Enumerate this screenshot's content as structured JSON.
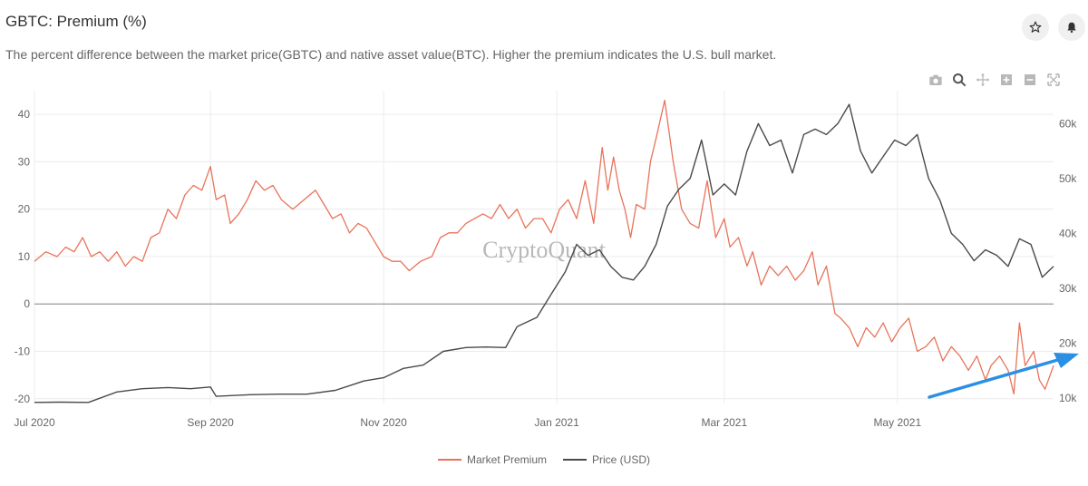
{
  "header": {
    "title": "GBTC: Premium (%)",
    "subtitle": "The percent difference between the market price(GBTC) and native asset value(BTC). Higher the premium indicates the U.S. bull market."
  },
  "icons": {
    "star": "star-icon",
    "bell": "bell-icon",
    "modebar": [
      "camera-icon",
      "zoom-icon",
      "pan-icon",
      "zoom-in-icon",
      "zoom-out-icon",
      "autoscale-icon"
    ]
  },
  "watermark": "CryptoQuant",
  "colors": {
    "premium": "#e8735a",
    "price": "#4a4a4a",
    "arrow": "#2b8fe3",
    "grid": "#ececec",
    "zero_line": "#9a9a9a"
  },
  "chart_data": {
    "type": "line",
    "x_ticks": [
      "Jul 2020",
      "Sep 2020",
      "Nov 2020",
      "Jan 2021",
      "Mar 2021",
      "May 2021"
    ],
    "x_tick_dates": [
      "2020-07-01",
      "2020-09-01",
      "2020-11-01",
      "2021-01-01",
      "2021-03-01",
      "2021-05-01"
    ],
    "x_range": [
      "2020-07-01",
      "2021-06-25"
    ],
    "y_left": {
      "ticks": [
        40,
        30,
        20,
        10,
        0,
        -10,
        -20
      ],
      "range": [
        -21,
        45
      ]
    },
    "y_right": {
      "ticks": [
        "60k",
        "50k",
        "40k",
        "30k",
        "20k",
        "10k"
      ],
      "tick_values": [
        60000,
        50000,
        40000,
        30000,
        20000,
        10000
      ],
      "range": [
        9000,
        66000
      ]
    },
    "legend": {
      "position": "bottom-center"
    },
    "grid": true,
    "series": [
      {
        "name": "Market Premium",
        "axis": "left",
        "color": "#e8735a",
        "points": [
          [
            "2020-07-01",
            9
          ],
          [
            "2020-07-05",
            11
          ],
          [
            "2020-07-09",
            10
          ],
          [
            "2020-07-12",
            12
          ],
          [
            "2020-07-15",
            11
          ],
          [
            "2020-07-18",
            14
          ],
          [
            "2020-07-21",
            10
          ],
          [
            "2020-07-24",
            11
          ],
          [
            "2020-07-27",
            9
          ],
          [
            "2020-07-30",
            11
          ],
          [
            "2020-08-02",
            8
          ],
          [
            "2020-08-05",
            10
          ],
          [
            "2020-08-08",
            9
          ],
          [
            "2020-08-11",
            14
          ],
          [
            "2020-08-14",
            15
          ],
          [
            "2020-08-17",
            20
          ],
          [
            "2020-08-20",
            18
          ],
          [
            "2020-08-23",
            23
          ],
          [
            "2020-08-26",
            25
          ],
          [
            "2020-08-29",
            24
          ],
          [
            "2020-09-01",
            29
          ],
          [
            "2020-09-03",
            22
          ],
          [
            "2020-09-06",
            23
          ],
          [
            "2020-09-08",
            17
          ],
          [
            "2020-09-11",
            19
          ],
          [
            "2020-09-14",
            22
          ],
          [
            "2020-09-17",
            26
          ],
          [
            "2020-09-20",
            24
          ],
          [
            "2020-09-23",
            25
          ],
          [
            "2020-09-26",
            22
          ],
          [
            "2020-09-30",
            20
          ],
          [
            "2020-10-04",
            22
          ],
          [
            "2020-10-08",
            24
          ],
          [
            "2020-10-11",
            21
          ],
          [
            "2020-10-14",
            18
          ],
          [
            "2020-10-17",
            19
          ],
          [
            "2020-10-20",
            15
          ],
          [
            "2020-10-23",
            17
          ],
          [
            "2020-10-26",
            16
          ],
          [
            "2020-10-29",
            13
          ],
          [
            "2020-11-01",
            10
          ],
          [
            "2020-11-04",
            9
          ],
          [
            "2020-11-07",
            9
          ],
          [
            "2020-11-10",
            7
          ],
          [
            "2020-11-14",
            9
          ],
          [
            "2020-11-18",
            10
          ],
          [
            "2020-11-21",
            14
          ],
          [
            "2020-11-24",
            15
          ],
          [
            "2020-11-27",
            15
          ],
          [
            "2020-11-30",
            17
          ],
          [
            "2020-12-03",
            18
          ],
          [
            "2020-12-06",
            19
          ],
          [
            "2020-12-09",
            18
          ],
          [
            "2020-12-12",
            21
          ],
          [
            "2020-12-15",
            18
          ],
          [
            "2020-12-18",
            20
          ],
          [
            "2020-12-21",
            16
          ],
          [
            "2020-12-24",
            18
          ],
          [
            "2020-12-27",
            18
          ],
          [
            "2020-12-30",
            15
          ],
          [
            "2021-01-02",
            20
          ],
          [
            "2021-01-05",
            22
          ],
          [
            "2021-01-08",
            18
          ],
          [
            "2021-01-11",
            26
          ],
          [
            "2021-01-14",
            17
          ],
          [
            "2021-01-17",
            33
          ],
          [
            "2021-01-19",
            24
          ],
          [
            "2021-01-21",
            31
          ],
          [
            "2021-01-23",
            24
          ],
          [
            "2021-01-25",
            20
          ],
          [
            "2021-01-27",
            14
          ],
          [
            "2021-01-29",
            21
          ],
          [
            "2021-02-01",
            20
          ],
          [
            "2021-02-03",
            30
          ],
          [
            "2021-02-05",
            35
          ],
          [
            "2021-02-08",
            43
          ],
          [
            "2021-02-11",
            30
          ],
          [
            "2021-02-14",
            20
          ],
          [
            "2021-02-17",
            17
          ],
          [
            "2021-02-20",
            16
          ],
          [
            "2021-02-23",
            26
          ],
          [
            "2021-02-26",
            14
          ],
          [
            "2021-03-01",
            18
          ],
          [
            "2021-03-03",
            12
          ],
          [
            "2021-03-06",
            14
          ],
          [
            "2021-03-09",
            8
          ],
          [
            "2021-03-11",
            11
          ],
          [
            "2021-03-14",
            4
          ],
          [
            "2021-03-17",
            8
          ],
          [
            "2021-03-20",
            6
          ],
          [
            "2021-03-23",
            8
          ],
          [
            "2021-03-26",
            5
          ],
          [
            "2021-03-29",
            7
          ],
          [
            "2021-04-01",
            11
          ],
          [
            "2021-04-03",
            4
          ],
          [
            "2021-04-06",
            8
          ],
          [
            "2021-04-09",
            -2
          ],
          [
            "2021-04-11",
            -3
          ],
          [
            "2021-04-14",
            -5
          ],
          [
            "2021-04-17",
            -9
          ],
          [
            "2021-04-20",
            -5
          ],
          [
            "2021-04-23",
            -7
          ],
          [
            "2021-04-26",
            -4
          ],
          [
            "2021-04-29",
            -8
          ],
          [
            "2021-05-02",
            -5
          ],
          [
            "2021-05-05",
            -3
          ],
          [
            "2021-05-08",
            -10
          ],
          [
            "2021-05-11",
            -9
          ],
          [
            "2021-05-14",
            -7
          ],
          [
            "2021-05-17",
            -12
          ],
          [
            "2021-05-20",
            -9
          ],
          [
            "2021-05-23",
            -11
          ],
          [
            "2021-05-26",
            -14
          ],
          [
            "2021-05-29",
            -11
          ],
          [
            "2021-06-01",
            -16
          ],
          [
            "2021-06-03",
            -13
          ],
          [
            "2021-06-06",
            -11
          ],
          [
            "2021-06-09",
            -14
          ],
          [
            "2021-06-11",
            -19
          ],
          [
            "2021-06-13",
            -4
          ],
          [
            "2021-06-15",
            -13
          ],
          [
            "2021-06-18",
            -10
          ],
          [
            "2021-06-20",
            -16
          ],
          [
            "2021-06-22",
            -18
          ],
          [
            "2021-06-25",
            -13
          ]
        ]
      },
      {
        "name": "Price (USD)",
        "axis": "right",
        "color": "#4a4a4a",
        "points": [
          [
            "2020-07-01",
            9200
          ],
          [
            "2020-07-10",
            9250
          ],
          [
            "2020-07-20",
            9200
          ],
          [
            "2020-07-30",
            11100
          ],
          [
            "2020-08-08",
            11700
          ],
          [
            "2020-08-17",
            11900
          ],
          [
            "2020-08-25",
            11700
          ],
          [
            "2020-09-01",
            12000
          ],
          [
            "2020-09-03",
            10300
          ],
          [
            "2020-09-15",
            10600
          ],
          [
            "2020-09-25",
            10700
          ],
          [
            "2020-10-05",
            10700
          ],
          [
            "2020-10-15",
            11400
          ],
          [
            "2020-10-25",
            13100
          ],
          [
            "2020-11-01",
            13700
          ],
          [
            "2020-11-08",
            15400
          ],
          [
            "2020-11-15",
            16000
          ],
          [
            "2020-11-22",
            18500
          ],
          [
            "2020-11-30",
            19200
          ],
          [
            "2020-12-07",
            19300
          ],
          [
            "2020-12-14",
            19200
          ],
          [
            "2020-12-18",
            23000
          ],
          [
            "2020-12-25",
            24700
          ],
          [
            "2020-12-30",
            28900
          ],
          [
            "2021-01-04",
            33000
          ],
          [
            "2021-01-08",
            38000
          ],
          [
            "2021-01-12",
            36000
          ],
          [
            "2021-01-16",
            37000
          ],
          [
            "2021-01-20",
            34000
          ],
          [
            "2021-01-24",
            32000
          ],
          [
            "2021-01-28",
            31500
          ],
          [
            "2021-02-01",
            34000
          ],
          [
            "2021-02-05",
            38000
          ],
          [
            "2021-02-09",
            45000
          ],
          [
            "2021-02-13",
            48000
          ],
          [
            "2021-02-17",
            50000
          ],
          [
            "2021-02-21",
            57000
          ],
          [
            "2021-02-25",
            47000
          ],
          [
            "2021-03-01",
            49000
          ],
          [
            "2021-03-05",
            47000
          ],
          [
            "2021-03-09",
            55000
          ],
          [
            "2021-03-13",
            60000
          ],
          [
            "2021-03-17",
            56000
          ],
          [
            "2021-03-21",
            57000
          ],
          [
            "2021-03-25",
            51000
          ],
          [
            "2021-03-29",
            58000
          ],
          [
            "2021-04-02",
            59000
          ],
          [
            "2021-04-06",
            58000
          ],
          [
            "2021-04-10",
            60000
          ],
          [
            "2021-04-14",
            63500
          ],
          [
            "2021-04-18",
            55000
          ],
          [
            "2021-04-22",
            51000
          ],
          [
            "2021-04-26",
            54000
          ],
          [
            "2021-04-30",
            57000
          ],
          [
            "2021-05-04",
            56000
          ],
          [
            "2021-05-08",
            58000
          ],
          [
            "2021-05-12",
            50000
          ],
          [
            "2021-05-16",
            46000
          ],
          [
            "2021-05-20",
            40000
          ],
          [
            "2021-05-24",
            38000
          ],
          [
            "2021-05-28",
            35000
          ],
          [
            "2021-06-01",
            37000
          ],
          [
            "2021-06-05",
            36000
          ],
          [
            "2021-06-09",
            34000
          ],
          [
            "2021-06-13",
            39000
          ],
          [
            "2021-06-17",
            38000
          ],
          [
            "2021-06-21",
            32000
          ],
          [
            "2021-06-25",
            34000
          ]
        ]
      }
    ]
  },
  "legend": [
    {
      "label": "Market Premium",
      "color": "#e8735a"
    },
    {
      "label": "Price (USD)",
      "color": "#4a4a4a"
    }
  ]
}
